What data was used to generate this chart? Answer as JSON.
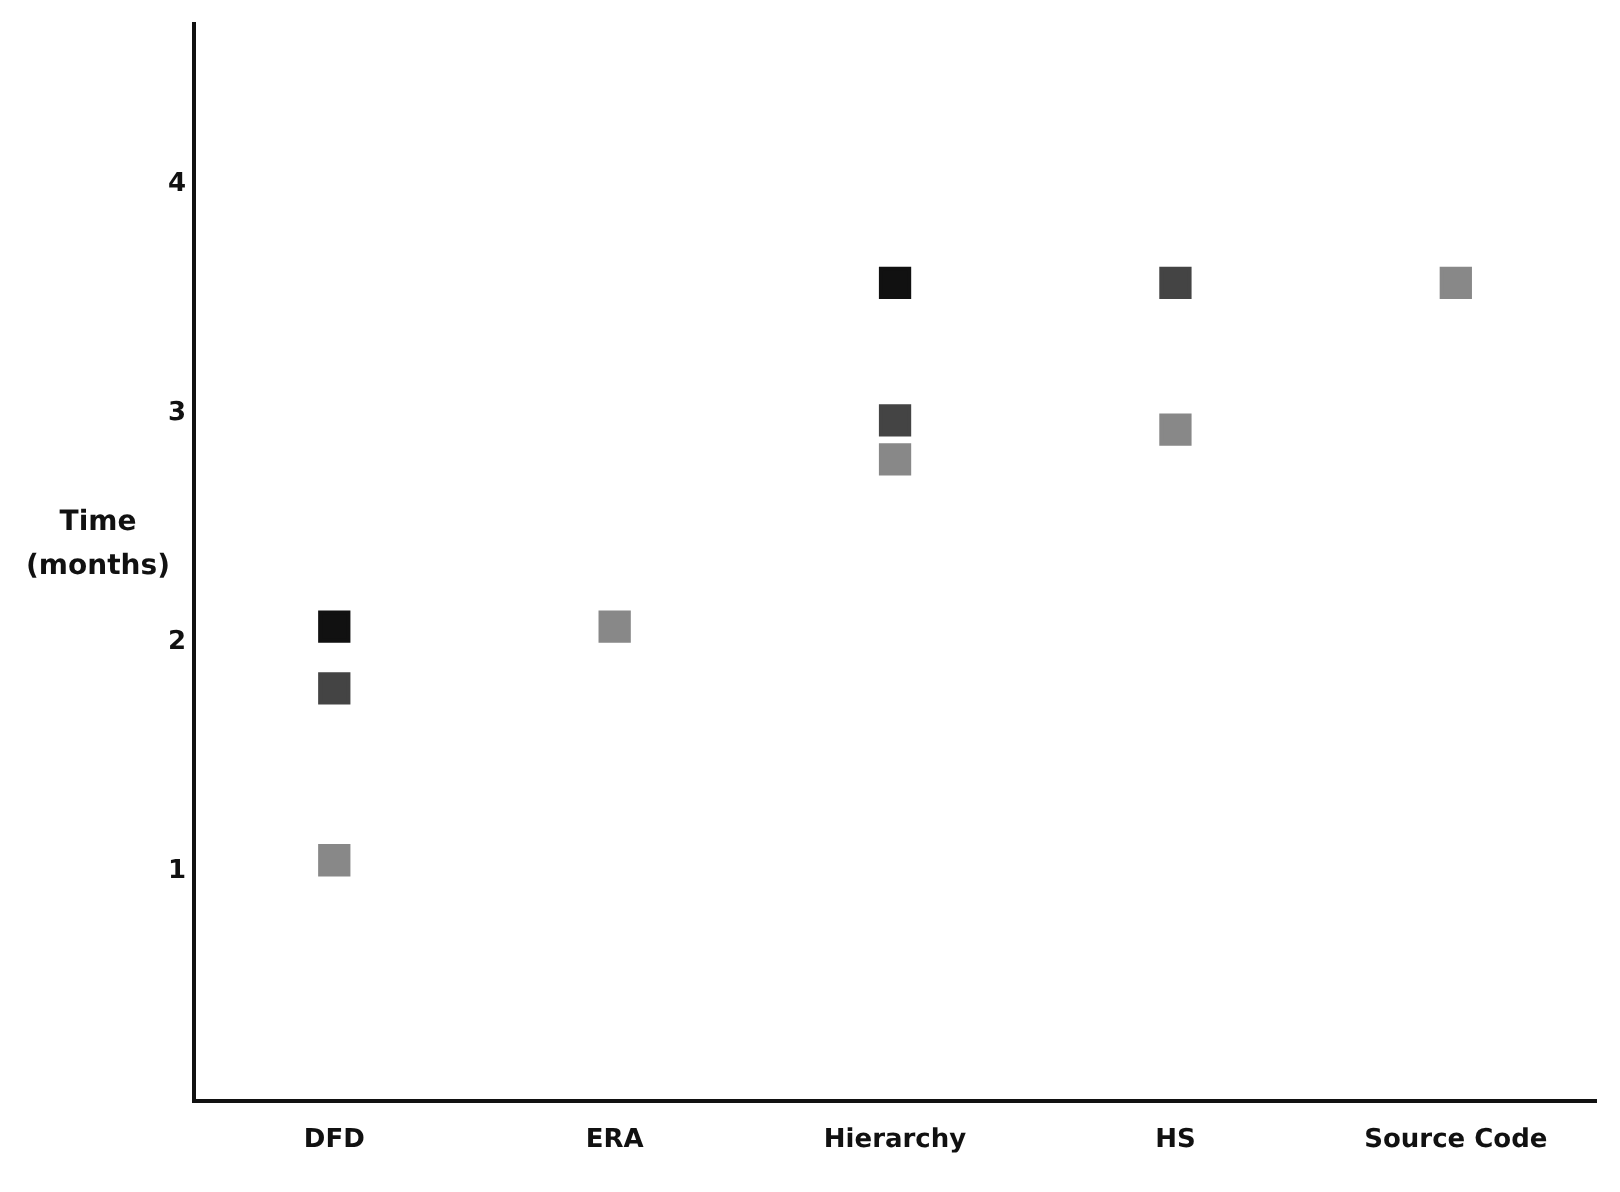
{
  "chart_data": {
    "type": "scatter",
    "ylabel": "Time\n(months)",
    "categories": [
      "DFD",
      "ERA",
      "Hierarchy",
      "HS",
      "Source Code"
    ],
    "series": [
      {
        "color": "#111111",
        "values": [
          2.07,
          null,
          3.57,
          null,
          null
        ]
      },
      {
        "color": "#444444",
        "values": [
          1.8,
          null,
          2.97,
          3.57,
          null
        ]
      },
      {
        "color": "#888888",
        "values": [
          1.05,
          2.07,
          2.8,
          2.93,
          3.57
        ]
      }
    ],
    "ylim": [
      0,
      4.7
    ],
    "yticks": [
      1,
      2,
      3,
      4
    ],
    "grid": false,
    "legend": false,
    "marker": "square"
  }
}
